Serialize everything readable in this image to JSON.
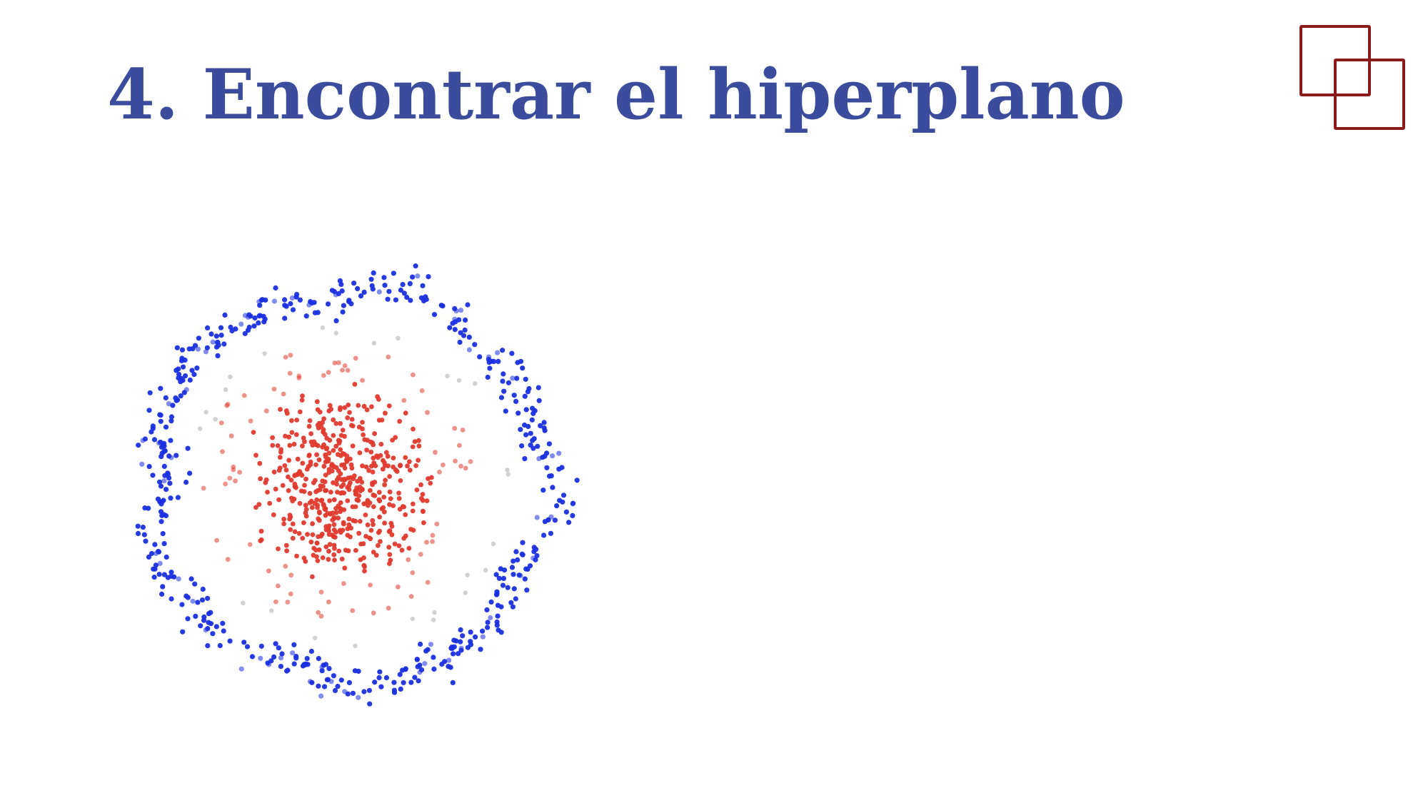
{
  "slide": {
    "title": "4. Encontrar el hiperplano"
  },
  "colors": {
    "title": "#3a4c9b",
    "logo": "#8b1a1a",
    "outer_class": "#1a2fe0",
    "inner_class": "#e03a2e",
    "ambiguous": "#cccccc"
  },
  "logo": {
    "icon": "overlapping-squares-icon"
  },
  "diagram": {
    "kind": "scatter",
    "classes": [
      {
        "role": "outer-ring",
        "color_key": "outer_class",
        "approx_points": 520
      },
      {
        "role": "inner-cluster",
        "color_key": "inner_class",
        "approx_points": 560
      }
    ]
  }
}
